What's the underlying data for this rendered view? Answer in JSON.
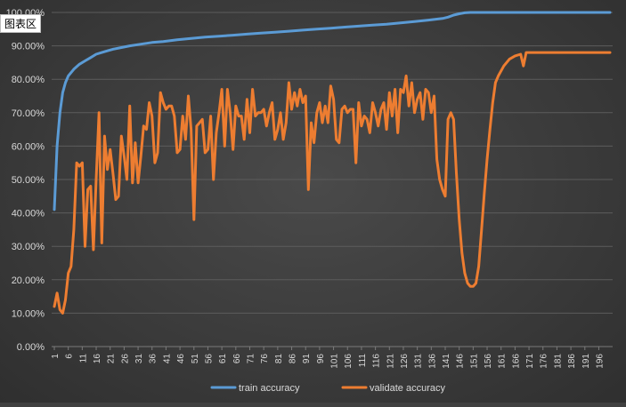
{
  "chart_area_label": "图表区",
  "colors": {
    "train": "#5b9bd5",
    "validate": "#ed7d31",
    "grid": "#5c5c5c",
    "text": "#d9d9d9"
  },
  "chart_data": {
    "type": "line",
    "title": "",
    "xlabel": "",
    "ylabel": "",
    "ylim": [
      0,
      100
    ],
    "y_ticks": [
      "0.00%",
      "10.00%",
      "20.00%",
      "30.00%",
      "40.00%",
      "50.00%",
      "60.00%",
      "70.00%",
      "80.00%",
      "90.00%",
      "100.00%"
    ],
    "x_tick_labels": [
      "1",
      "6",
      "11",
      "16",
      "21",
      "26",
      "31",
      "36",
      "41",
      "46",
      "51",
      "56",
      "61",
      "66",
      "71",
      "76",
      "81",
      "86",
      "91",
      "96",
      "101",
      "106",
      "111",
      "116",
      "121",
      "126",
      "131",
      "136",
      "141",
      "146",
      "151",
      "156",
      "161",
      "166",
      "171",
      "176",
      "181",
      "186",
      "191",
      "196"
    ],
    "x_range": [
      1,
      200
    ],
    "grid": "horizontal",
    "legend_position": "bottom",
    "series": [
      {
        "name": "train accuracy",
        "points": [
          [
            1,
            41
          ],
          [
            2,
            60
          ],
          [
            3,
            70
          ],
          [
            4,
            76
          ],
          [
            5,
            79
          ],
          [
            6,
            81
          ],
          [
            8,
            83
          ],
          [
            10,
            84.5
          ],
          [
            12,
            85.5
          ],
          [
            14,
            86.5
          ],
          [
            16,
            87.5
          ],
          [
            18,
            88
          ],
          [
            20,
            88.5
          ],
          [
            22,
            89
          ],
          [
            25,
            89.5
          ],
          [
            28,
            90
          ],
          [
            32,
            90.5
          ],
          [
            36,
            91
          ],
          [
            40,
            91.3
          ],
          [
            45,
            91.8
          ],
          [
            50,
            92.2
          ],
          [
            55,
            92.6
          ],
          [
            60,
            92.9
          ],
          [
            65,
            93.2
          ],
          [
            70,
            93.5
          ],
          [
            75,
            93.8
          ],
          [
            80,
            94.1
          ],
          [
            85,
            94.4
          ],
          [
            90,
            94.7
          ],
          [
            95,
            95
          ],
          [
            100,
            95.3
          ],
          [
            105,
            95.6
          ],
          [
            110,
            95.9
          ],
          [
            115,
            96.2
          ],
          [
            120,
            96.5
          ],
          [
            125,
            96.9
          ],
          [
            130,
            97.3
          ],
          [
            135,
            97.7
          ],
          [
            140,
            98.2
          ],
          [
            142,
            98.6
          ],
          [
            144,
            99.2
          ],
          [
            146,
            99.6
          ],
          [
            148,
            99.9
          ],
          [
            150,
            100
          ],
          [
            200,
            100
          ]
        ]
      },
      {
        "name": "validate accuracy",
        "points": [
          [
            1,
            12
          ],
          [
            2,
            16
          ],
          [
            3,
            11
          ],
          [
            4,
            10
          ],
          [
            5,
            14
          ],
          [
            6,
            22
          ],
          [
            7,
            24
          ],
          [
            8,
            35
          ],
          [
            9,
            55
          ],
          [
            10,
            54
          ],
          [
            11,
            55
          ],
          [
            12,
            30
          ],
          [
            13,
            47
          ],
          [
            14,
            48
          ],
          [
            15,
            29
          ],
          [
            16,
            50
          ],
          [
            17,
            70
          ],
          [
            18,
            31
          ],
          [
            19,
            63
          ],
          [
            20,
            53
          ],
          [
            21,
            59
          ],
          [
            22,
            52
          ],
          [
            23,
            44
          ],
          [
            24,
            45
          ],
          [
            25,
            63
          ],
          [
            26,
            57
          ],
          [
            27,
            50
          ],
          [
            28,
            72
          ],
          [
            29,
            49
          ],
          [
            30,
            61
          ],
          [
            31,
            49
          ],
          [
            32,
            57
          ],
          [
            33,
            66
          ],
          [
            34,
            65
          ],
          [
            35,
            73
          ],
          [
            36,
            69
          ],
          [
            37,
            55
          ],
          [
            38,
            58
          ],
          [
            39,
            76
          ],
          [
            40,
            73
          ],
          [
            41,
            71
          ],
          [
            42,
            72
          ],
          [
            43,
            72
          ],
          [
            44,
            69
          ],
          [
            45,
            58
          ],
          [
            46,
            59
          ],
          [
            47,
            69
          ],
          [
            48,
            62
          ],
          [
            49,
            75
          ],
          [
            50,
            65
          ],
          [
            51,
            38
          ],
          [
            52,
            66
          ],
          [
            53,
            67
          ],
          [
            54,
            68
          ],
          [
            55,
            58
          ],
          [
            56,
            59
          ],
          [
            57,
            69
          ],
          [
            58,
            50
          ],
          [
            59,
            64
          ],
          [
            60,
            70
          ],
          [
            61,
            77
          ],
          [
            62,
            60
          ],
          [
            63,
            77
          ],
          [
            64,
            70
          ],
          [
            65,
            59
          ],
          [
            66,
            72
          ],
          [
            67,
            69
          ],
          [
            68,
            69
          ],
          [
            69,
            62
          ],
          [
            70,
            74
          ],
          [
            71,
            64
          ],
          [
            72,
            77
          ],
          [
            73,
            69
          ],
          [
            74,
            70
          ],
          [
            75,
            70
          ],
          [
            76,
            71
          ],
          [
            77,
            66
          ],
          [
            78,
            70
          ],
          [
            79,
            73
          ],
          [
            80,
            62
          ],
          [
            81,
            65
          ],
          [
            82,
            70
          ],
          [
            83,
            62
          ],
          [
            84,
            67
          ],
          [
            85,
            79
          ],
          [
            86,
            71
          ],
          [
            87,
            76
          ],
          [
            88,
            72
          ],
          [
            89,
            77
          ],
          [
            90,
            73
          ],
          [
            91,
            75
          ],
          [
            92,
            47
          ],
          [
            93,
            67
          ],
          [
            94,
            61
          ],
          [
            95,
            70
          ],
          [
            96,
            73
          ],
          [
            97,
            67
          ],
          [
            98,
            72
          ],
          [
            99,
            67
          ],
          [
            100,
            78
          ],
          [
            101,
            74
          ],
          [
            102,
            62
          ],
          [
            103,
            61
          ],
          [
            104,
            71
          ],
          [
            105,
            72
          ],
          [
            106,
            70
          ],
          [
            107,
            71
          ],
          [
            108,
            71
          ],
          [
            109,
            55
          ],
          [
            110,
            73
          ],
          [
            111,
            66
          ],
          [
            112,
            69
          ],
          [
            113,
            68
          ],
          [
            114,
            64
          ],
          [
            115,
            73
          ],
          [
            116,
            70
          ],
          [
            117,
            66
          ],
          [
            118,
            71
          ],
          [
            119,
            73
          ],
          [
            120,
            65
          ],
          [
            121,
            76
          ],
          [
            122,
            69
          ],
          [
            123,
            77
          ],
          [
            124,
            64
          ],
          [
            125,
            77
          ],
          [
            126,
            76
          ],
          [
            127,
            81
          ],
          [
            128,
            72
          ],
          [
            129,
            79
          ],
          [
            130,
            70
          ],
          [
            131,
            74
          ],
          [
            132,
            76
          ],
          [
            133,
            68
          ],
          [
            134,
            77
          ],
          [
            135,
            76
          ],
          [
            136,
            70
          ],
          [
            137,
            75
          ],
          [
            138,
            56
          ],
          [
            139,
            50
          ],
          [
            140,
            47
          ],
          [
            141,
            45
          ],
          [
            142,
            68
          ],
          [
            143,
            70
          ],
          [
            144,
            68
          ],
          [
            145,
            52
          ],
          [
            146,
            38
          ],
          [
            147,
            28
          ],
          [
            148,
            22
          ],
          [
            149,
            19
          ],
          [
            150,
            18
          ],
          [
            151,
            18
          ],
          [
            152,
            19
          ],
          [
            153,
            24
          ],
          [
            154,
            35
          ],
          [
            155,
            46
          ],
          [
            156,
            56
          ],
          [
            157,
            65
          ],
          [
            158,
            73
          ],
          [
            159,
            79
          ],
          [
            160,
            81
          ],
          [
            162,
            84
          ],
          [
            164,
            86
          ],
          [
            166,
            87
          ],
          [
            168,
            87.5
          ],
          [
            169,
            84
          ],
          [
            170,
            88
          ],
          [
            175,
            88
          ],
          [
            180,
            88
          ],
          [
            200,
            88
          ]
        ]
      }
    ]
  }
}
